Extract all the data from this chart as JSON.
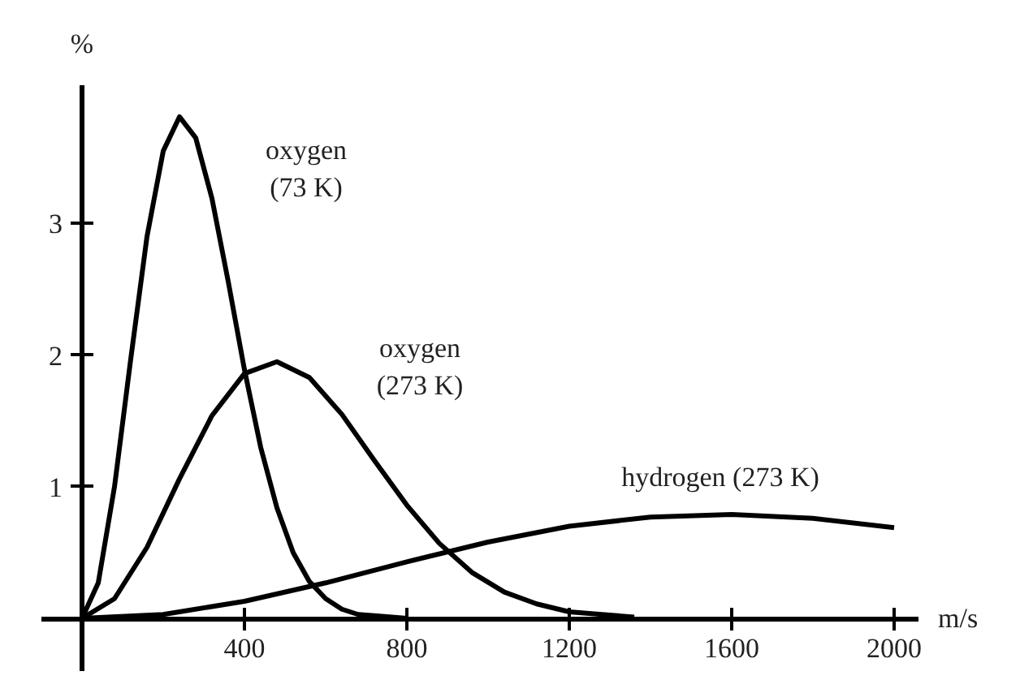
{
  "chart_data": {
    "type": "line",
    "xlabel": "m/s",
    "ylabel": "%",
    "xlim": [
      -100,
      2060
    ],
    "ylim": [
      -0.4,
      4.05
    ],
    "xticks": [
      400,
      800,
      1200,
      1600,
      2000
    ],
    "yticks": [
      1,
      2,
      3
    ],
    "grid": false,
    "marker": "none",
    "line_style": "solid",
    "series": [
      {
        "name": "oxygen\n(73 K)",
        "color": "#000000",
        "x": [
          0,
          40,
          80,
          120,
          160,
          200,
          240,
          280,
          320,
          360,
          400,
          440,
          480,
          520,
          560,
          600,
          640,
          680,
          720,
          800
        ],
        "values": [
          0,
          0.27,
          1.0,
          1.97,
          2.9,
          3.55,
          3.81,
          3.65,
          3.19,
          2.56,
          1.89,
          1.3,
          0.84,
          0.5,
          0.28,
          0.15,
          0.07,
          0.03,
          0.02,
          0
        ]
      },
      {
        "name": "oxygen\n(273 K)",
        "color": "#000000",
        "x": [
          0,
          80,
          160,
          240,
          320,
          400,
          480,
          560,
          640,
          720,
          800,
          880,
          960,
          1040,
          1120,
          1200,
          1280,
          1360
        ],
        "values": [
          0,
          0.15,
          0.54,
          1.06,
          1.54,
          1.86,
          1.95,
          1.83,
          1.55,
          1.2,
          0.86,
          0.57,
          0.35,
          0.2,
          0.11,
          0.05,
          0.03,
          0.01
        ]
      },
      {
        "name": "hydrogen (273 K)",
        "color": "#000000",
        "x": [
          0,
          200,
          400,
          600,
          800,
          1000,
          1200,
          1400,
          1600,
          1800,
          2000
        ],
        "values": [
          0,
          0.03,
          0.13,
          0.27,
          0.43,
          0.58,
          0.7,
          0.77,
          0.79,
          0.76,
          0.69
        ]
      }
    ]
  }
}
